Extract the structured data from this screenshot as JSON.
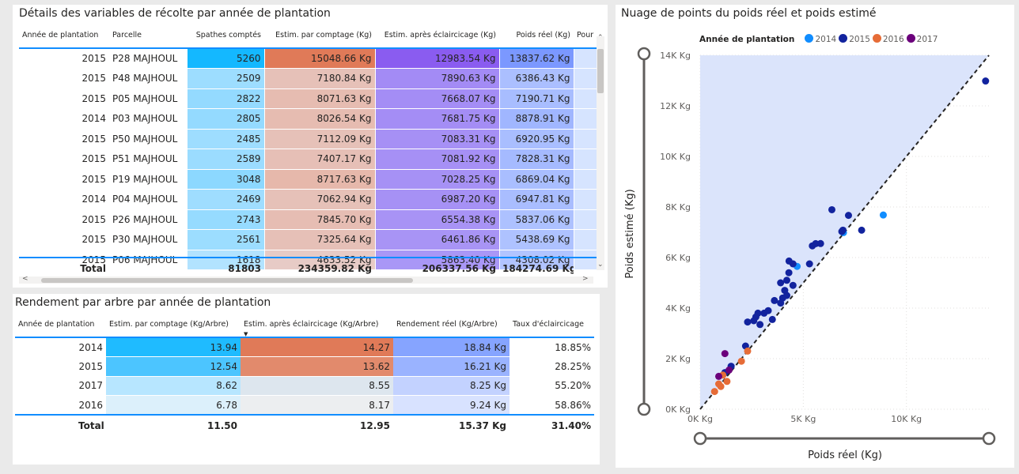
{
  "table1": {
    "title": "Détails des variables de récolte par année de plantation",
    "columns": [
      "Année de plantation",
      "Parcelle",
      "Spathes comptés",
      "Estim. par comptage (Kg)",
      "Estim. après éclaircicage (Kg)",
      "Poids réel (Kg)",
      "Pour"
    ],
    "rows": [
      {
        "year": "2015",
        "parcel": "P28 MAJHOUL",
        "spathes": "5260",
        "estim": "15048.66 Kg",
        "apres": "12983.54 Kg",
        "reel": "13837.62 Kg"
      },
      {
        "year": "2015",
        "parcel": "P48 MAJHOUL",
        "spathes": "2509",
        "estim": "7180.84 Kg",
        "apres": "7890.63 Kg",
        "reel": "6386.43 Kg"
      },
      {
        "year": "2015",
        "parcel": "P05 MAJHOUL",
        "spathes": "2822",
        "estim": "8071.63 Kg",
        "apres": "7668.07 Kg",
        "reel": "7190.71 Kg"
      },
      {
        "year": "2014",
        "parcel": "P03 MAJHOUL",
        "spathes": "2805",
        "estim": "8026.54 Kg",
        "apres": "7681.75 Kg",
        "reel": "8878.91 Kg"
      },
      {
        "year": "2015",
        "parcel": "P50 MAJHOUL",
        "spathes": "2485",
        "estim": "7112.09 Kg",
        "apres": "7083.31 Kg",
        "reel": "6920.95 Kg"
      },
      {
        "year": "2015",
        "parcel": "P51 MAJHOUL",
        "spathes": "2589",
        "estim": "7407.17 Kg",
        "apres": "7081.92 Kg",
        "reel": "7828.31 Kg"
      },
      {
        "year": "2015",
        "parcel": "P19 MAJHOUL",
        "spathes": "3048",
        "estim": "8717.63 Kg",
        "apres": "7028.25 Kg",
        "reel": "6869.04 Kg"
      },
      {
        "year": "2014",
        "parcel": "P04 MAJHOUL",
        "spathes": "2469",
        "estim": "7062.94 Kg",
        "apres": "6987.20 Kg",
        "reel": "6947.81 Kg"
      },
      {
        "year": "2015",
        "parcel": "P26 MAJHOUL",
        "spathes": "2743",
        "estim": "7845.70 Kg",
        "apres": "6554.38 Kg",
        "reel": "5837.06 Kg"
      },
      {
        "year": "2015",
        "parcel": "P30 MAJHOUL",
        "spathes": "2561",
        "estim": "7325.64 Kg",
        "apres": "6461.86 Kg",
        "reel": "5438.69 Kg"
      },
      {
        "year": "2015",
        "parcel": "P06 MAJHOUL",
        "spathes": "1618",
        "estim": "4633.52 Kg",
        "apres": "5863.40 Kg",
        "reel": "4308.02 Kg"
      }
    ],
    "total": {
      "label": "Total",
      "spathes": "81803",
      "estim": "234359.82 Kg",
      "apres": "206337.56 Kg",
      "reel": "184274.69 Kg"
    }
  },
  "table2": {
    "title": "Rendement par arbre par année de plantation",
    "columns": [
      "Année de plantation",
      "Estim. par comptage (Kg/Arbre)",
      "Estim. après éclaircicage (Kg/Arbre)",
      "Rendement réel (Kg/Arbre)",
      "Taux d'éclaircicage"
    ],
    "rows": [
      {
        "year": "2014",
        "estim": "13.94",
        "apres": "14.27",
        "reel": "18.84 Kg",
        "taux": "18.85%"
      },
      {
        "year": "2015",
        "estim": "12.54",
        "apres": "13.62",
        "reel": "16.21 Kg",
        "taux": "28.25%"
      },
      {
        "year": "2017",
        "estim": "8.62",
        "apres": "8.55",
        "reel": "8.25 Kg",
        "taux": "55.20%"
      },
      {
        "year": "2016",
        "estim": "6.78",
        "apres": "8.17",
        "reel": "9.24 Kg",
        "taux": "58.86%"
      }
    ],
    "total": {
      "label": "Total",
      "estim": "11.50",
      "apres": "12.95",
      "reel": "15.37 Kg",
      "taux": "31.40%"
    }
  },
  "chart_data": {
    "type": "scatter",
    "title": "Nuage de points du poids réel et poids estimé",
    "xlabel": "Poids réel (Kg)",
    "ylabel": "Poids estimé (Kg)",
    "xlim": [
      0,
      14000
    ],
    "ylim": [
      0,
      14000
    ],
    "x_ticks": [
      "0K Kg",
      "5K Kg",
      "10K Kg"
    ],
    "x_tick_values": [
      0,
      5000,
      10000
    ],
    "y_ticks": [
      "0K Kg",
      "2K Kg",
      "4K Kg",
      "6K Kg",
      "8K Kg",
      "10K Kg",
      "12K Kg",
      "14K Kg"
    ],
    "y_tick_values": [
      0,
      2000,
      4000,
      6000,
      8000,
      10000,
      12000,
      14000
    ],
    "legend_title": "Année de plantation",
    "legend_position": "top",
    "grid": true,
    "reference_line": "y = x (dashed)",
    "series": [
      {
        "name": "2014",
        "color": "#118dff",
        "points": [
          [
            8878,
            7682
          ],
          [
            6948,
            6987
          ],
          [
            4700,
            5650
          ]
        ]
      },
      {
        "name": "2015",
        "color": "#12239e",
        "points": [
          [
            13838,
            12984
          ],
          [
            6386,
            7891
          ],
          [
            7191,
            7668
          ],
          [
            6921,
            7083
          ],
          [
            7828,
            7082
          ],
          [
            6869,
            7028
          ],
          [
            5837,
            6554
          ],
          [
            5439,
            6462
          ],
          [
            4308,
            5863
          ],
          [
            5600,
            6550
          ],
          [
            5300,
            5750
          ],
          [
            4500,
            5750
          ],
          [
            4300,
            5400
          ],
          [
            4200,
            5100
          ],
          [
            3900,
            5000
          ],
          [
            4500,
            4900
          ],
          [
            4100,
            4700
          ],
          [
            4200,
            4500
          ],
          [
            4000,
            4400
          ],
          [
            3600,
            4300
          ],
          [
            3900,
            4200
          ],
          [
            3300,
            3900
          ],
          [
            3100,
            3800
          ],
          [
            2800,
            3800
          ],
          [
            2700,
            3650
          ],
          [
            3500,
            3550
          ],
          [
            2600,
            3500
          ],
          [
            2300,
            3450
          ],
          [
            2900,
            3350
          ],
          [
            2200,
            2500
          ],
          [
            1500,
            1700
          ],
          [
            1200,
            1450
          ]
        ]
      },
      {
        "name": "2016",
        "color": "#e66c37",
        "points": [
          [
            2300,
            2300
          ],
          [
            2000,
            1900
          ],
          [
            1100,
            1350
          ],
          [
            1300,
            1100
          ],
          [
            900,
            1000
          ],
          [
            1000,
            900
          ],
          [
            700,
            700
          ]
        ]
      },
      {
        "name": "2017",
        "color": "#6b007b",
        "points": [
          [
            1200,
            2200
          ],
          [
            900,
            1300
          ],
          [
            1400,
            1550
          ]
        ]
      }
    ]
  }
}
